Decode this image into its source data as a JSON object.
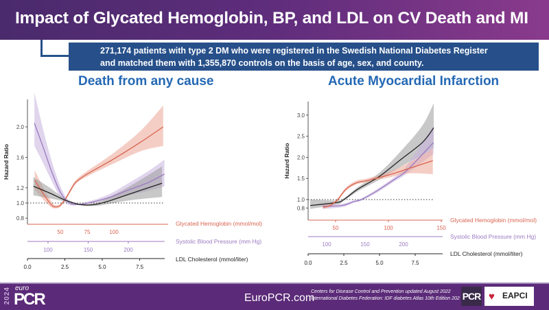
{
  "slide": {
    "title": "Impact of Glycated Hemoglobin, BP, and LDL on CV Death and MI",
    "info_line1": "271,174 patients with type 2 DM who were registered in the Swedish National Diabetes Register",
    "info_line2": "and matched them with 1,355,870 controls on the basis of age, sex, and county.",
    "colors": {
      "header": "#5f2d7c",
      "infobox": "#27508a",
      "subtitle": "#2468b4",
      "footer": "#5b2a78"
    }
  },
  "footer": {
    "logo_year": "2024",
    "logo_euro": "euro",
    "logo_pcr": "PCR",
    "site": "EuroPCR.com",
    "ref1": "Centers for Disease Control and Prevention updated August 2022",
    "ref2": "International Diabetes Federation: IDF diabetes Atlas 10th Edition 202",
    "pcr_badge": "PCR",
    "eapci": "EAPCI"
  },
  "chart_data": [
    {
      "type": "line",
      "title": "Death from any cause",
      "ylabel": "Hazard Ratio",
      "yticks": [
        "0.8",
        "1.0",
        "1.2",
        "1.6",
        "2.0"
      ],
      "ylim": [
        0.75,
        2.4
      ],
      "reference_line": 1.0,
      "grid": false,
      "axes": [
        {
          "label": "Glycated Hemoglobin (mmol/mol)",
          "ticks": [
            "50",
            "75",
            "100"
          ],
          "color": "#d9634f"
        },
        {
          "label": "Systolic Blood Pressure (mm Hg)",
          "ticks": [
            "100",
            "150",
            "200"
          ],
          "color": "#9b7ac0"
        },
        {
          "label": "LDL Cholesterol (mmol/liter)",
          "ticks": [
            "0.0",
            "2.5",
            "5.0",
            "7.5"
          ],
          "color": "#222222"
        }
      ],
      "series": [
        {
          "axis": 0,
          "color": "#d9634f",
          "band": "#eba696",
          "x": [
            26,
            35,
            42,
            46,
            50,
            55,
            60,
            65,
            75,
            100,
            125,
            146
          ],
          "y": [
            1.3,
            1.1,
            0.97,
            0.95,
            0.97,
            1.06,
            1.18,
            1.28,
            1.38,
            1.58,
            1.8,
            2.0
          ],
          "lower": [
            1.18,
            1.03,
            0.94,
            0.93,
            0.95,
            1.04,
            1.16,
            1.26,
            1.35,
            1.52,
            1.68,
            1.75
          ],
          "upper": [
            1.43,
            1.18,
            1.01,
            0.97,
            0.99,
            1.08,
            1.21,
            1.31,
            1.42,
            1.66,
            1.95,
            2.28
          ]
        },
        {
          "axis": 1,
          "color": "#9b7ac0",
          "band": "#c6b2de",
          "x": [
            83,
            95,
            105,
            115,
            125,
            135,
            150,
            175,
            200,
            225,
            245
          ],
          "y": [
            2.05,
            1.7,
            1.4,
            1.15,
            1.01,
            0.98,
            1.0,
            1.07,
            1.17,
            1.27,
            1.38
          ],
          "lower": [
            1.75,
            1.5,
            1.28,
            1.08,
            0.98,
            0.97,
            0.99,
            1.04,
            1.1,
            1.16,
            1.22
          ],
          "upper": [
            2.45,
            1.92,
            1.54,
            1.23,
            1.04,
            0.99,
            1.02,
            1.11,
            1.26,
            1.42,
            1.57
          ]
        },
        {
          "axis": 2,
          "color": "#222222",
          "band": "#9a9a9a",
          "x": [
            0.4,
            1.5,
            2.5,
            3.5,
            4.5,
            5.5,
            7,
            9
          ],
          "y": [
            1.22,
            1.13,
            1.04,
            0.98,
            0.98,
            1.03,
            1.13,
            1.26
          ],
          "lower": [
            1.1,
            1.06,
            1.02,
            0.97,
            0.96,
            0.99,
            1.04,
            1.08
          ],
          "upper": [
            1.34,
            1.2,
            1.06,
            0.99,
            1.0,
            1.08,
            1.24,
            1.48
          ]
        }
      ]
    },
    {
      "type": "line",
      "title": "Acute Myocardial Infarction",
      "ylabel": "Hazard Ratio",
      "yticks": [
        "0.8",
        "1.0",
        "1.5",
        "2.0",
        "2.5",
        "3.0"
      ],
      "ylim": [
        0.75,
        3.3
      ],
      "reference_line": 1.0,
      "grid": false,
      "axes": [
        {
          "label": "Glycated Hemoglobin (mmol/mol)",
          "ticks": [
            "50",
            "100",
            "150"
          ],
          "color": "#d9634f"
        },
        {
          "label": "Systolic Blood Pressure (mm Hg)",
          "ticks": [
            "100",
            "150",
            "200"
          ],
          "color": "#9b7ac0"
        },
        {
          "label": "LDL Cholesterol (mmol/liter)",
          "ticks": [
            "0.0",
            "2.5",
            "5.0",
            "7.5"
          ],
          "color": "#222222"
        }
      ],
      "series": [
        {
          "axis": 2,
          "color": "#222222",
          "band": "#9a9a9a",
          "x": [
            0.15,
            2.0,
            2.5,
            3.5,
            5.0,
            6.5,
            8.0,
            8.8
          ],
          "y": [
            0.86,
            0.93,
            1.0,
            1.25,
            1.55,
            1.95,
            2.35,
            2.7
          ],
          "lower": [
            0.78,
            0.88,
            0.97,
            1.2,
            1.47,
            1.78,
            2.05,
            2.22
          ],
          "upper": [
            1.0,
            0.98,
            1.03,
            1.3,
            1.64,
            2.15,
            2.75,
            3.28
          ]
        },
        {
          "axis": 1,
          "color": "#9b7ac0",
          "band": "#c6b2de",
          "x": [
            95,
            120,
            135,
            145,
            165,
            190,
            205,
            239
          ],
          "y": [
            0.84,
            0.86,
            0.95,
            1.0,
            1.2,
            1.5,
            1.7,
            2.35
          ],
          "lower": [
            0.78,
            0.82,
            0.92,
            0.97,
            1.16,
            1.45,
            1.62,
            2.08
          ],
          "upper": [
            0.89,
            0.9,
            0.98,
            1.03,
            1.24,
            1.56,
            1.82,
            2.75
          ]
        },
        {
          "axis": 0,
          "color": "#d9634f",
          "band": "#eba696",
          "x": [
            38,
            45,
            52,
            60,
            70,
            80,
            100,
            120,
            142
          ],
          "y": [
            0.82,
            0.86,
            1.0,
            1.25,
            1.4,
            1.45,
            1.58,
            1.74,
            1.92
          ],
          "lower": [
            0.78,
            0.83,
            0.97,
            1.21,
            1.36,
            1.41,
            1.52,
            1.62,
            1.6
          ],
          "upper": [
            0.87,
            0.9,
            1.03,
            1.29,
            1.45,
            1.5,
            1.65,
            1.88,
            2.2
          ]
        }
      ]
    }
  ]
}
